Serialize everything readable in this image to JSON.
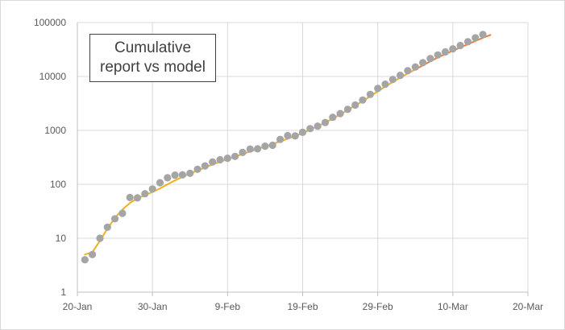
{
  "chart_data": {
    "type": "line",
    "title_lines": [
      "Cumulative",
      "report vs model"
    ],
    "xlabel": "",
    "ylabel": "",
    "x_axis": {
      "type": "date",
      "range": [
        "20-Jan",
        "20-Mar"
      ],
      "tick_labels": [
        "20-Jan",
        "30-Jan",
        "9-Feb",
        "19-Feb",
        "29-Feb",
        "10-Mar",
        "20-Mar"
      ]
    },
    "y_axis": {
      "scale": "log",
      "range": [
        1,
        100000
      ],
      "tick_labels": [
        "1",
        "10",
        "100",
        "1000",
        "10000",
        "100000"
      ]
    },
    "grid": "vertical and horizontal major gridlines",
    "legend": "none",
    "series": [
      {
        "kind": "markers",
        "color": "#a5a5a5",
        "points": [
          [
            "21-Jan",
            4
          ],
          [
            "22-Jan",
            5
          ],
          [
            "23-Jan",
            10
          ],
          [
            "24-Jan",
            16
          ],
          [
            "25-Jan",
            23
          ],
          [
            "26-Jan",
            29
          ],
          [
            "27-Jan",
            57
          ],
          [
            "28-Jan",
            56
          ],
          [
            "29-Jan",
            67
          ],
          [
            "30-Jan",
            82
          ],
          [
            "31-Jan",
            107
          ],
          [
            "1-Feb",
            132
          ],
          [
            "2-Feb",
            148
          ],
          [
            "3-Feb",
            150
          ],
          [
            "4-Feb",
            160
          ],
          [
            "5-Feb",
            190
          ],
          [
            "6-Feb",
            220
          ],
          [
            "7-Feb",
            260
          ],
          [
            "8-Feb",
            285
          ],
          [
            "9-Feb",
            305
          ],
          [
            "10-Feb",
            330
          ],
          [
            "11-Feb",
            390
          ],
          [
            "12-Feb",
            450
          ],
          [
            "13-Feb",
            455
          ],
          [
            "14-Feb",
            510
          ],
          [
            "15-Feb",
            530
          ],
          [
            "16-Feb",
            680
          ],
          [
            "17-Feb",
            800
          ],
          [
            "18-Feb",
            790
          ],
          [
            "19-Feb",
            920
          ],
          [
            "20-Feb",
            1080
          ],
          [
            "21-Feb",
            1200
          ],
          [
            "22-Feb",
            1400
          ],
          [
            "23-Feb",
            1750
          ],
          [
            "24-Feb",
            2050
          ],
          [
            "25-Feb",
            2450
          ],
          [
            "26-Feb",
            2950
          ],
          [
            "27-Feb",
            3650
          ],
          [
            "28-Feb",
            4650
          ],
          [
            "29-Feb",
            6000
          ],
          [
            "1-Mar",
            7200
          ],
          [
            "2-Mar",
            8800
          ],
          [
            "3-Mar",
            10500
          ],
          [
            "4-Mar",
            12800
          ],
          [
            "5-Mar",
            15000
          ],
          [
            "6-Mar",
            18000
          ],
          [
            "7-Mar",
            21500
          ],
          [
            "8-Mar",
            25000
          ],
          [
            "9-Mar",
            28500
          ],
          [
            "10-Mar",
            32500
          ],
          [
            "11-Mar",
            37500
          ],
          [
            "12-Mar",
            44000
          ],
          [
            "13-Mar",
            52000
          ],
          [
            "14-Mar",
            60000
          ]
        ]
      },
      {
        "kind": "line",
        "color": "#f2b01e",
        "points": [
          [
            "21-Jan",
            5
          ],
          [
            "22-Jan",
            5.5
          ],
          [
            "23-Jan",
            9
          ],
          [
            "24-Jan",
            15
          ],
          [
            "25-Jan",
            24
          ],
          [
            "26-Jan",
            34
          ],
          [
            "27-Jan",
            45
          ],
          [
            "28-Jan",
            55
          ],
          [
            "29-Jan",
            63
          ],
          [
            "30-Jan",
            72
          ],
          [
            "31-Jan",
            84
          ],
          [
            "1-Feb",
            100
          ],
          [
            "2-Feb",
            118
          ],
          [
            "3-Feb",
            138
          ],
          [
            "4-Feb",
            158
          ],
          [
            "5-Feb",
            180
          ],
          [
            "6-Feb",
            205
          ],
          [
            "7-Feb",
            232
          ],
          [
            "8-Feb",
            262
          ],
          [
            "9-Feb",
            292
          ],
          [
            "10-Feb",
            325
          ],
          [
            "11-Feb",
            365
          ],
          [
            "12-Feb",
            405
          ],
          [
            "13-Feb",
            452
          ],
          [
            "14-Feb",
            505
          ],
          [
            "15-Feb",
            560
          ],
          [
            "16-Feb",
            625
          ],
          [
            "17-Feb",
            700
          ],
          [
            "18-Feb",
            790
          ],
          [
            "19-Feb",
            890
          ],
          [
            "20-Feb",
            1030
          ],
          [
            "21-Feb",
            1190
          ],
          [
            "22-Feb",
            1400
          ],
          [
            "23-Feb",
            1650
          ],
          [
            "24-Feb",
            1980
          ],
          [
            "25-Feb",
            2380
          ],
          [
            "26-Feb",
            2880
          ],
          [
            "27-Feb",
            3500
          ],
          [
            "28-Feb",
            4300
          ],
          [
            "29-Feb",
            5300
          ],
          [
            "1-Mar",
            6500
          ],
          [
            "2-Mar",
            7900
          ],
          [
            "3-Mar",
            9500
          ],
          [
            "4-Mar",
            11400
          ],
          [
            "5-Mar",
            13500
          ]
        ]
      },
      {
        "kind": "line",
        "color": "#ed7d31",
        "points": [
          [
            "5-Mar",
            13500
          ],
          [
            "6-Mar",
            16000
          ],
          [
            "7-Mar",
            19000
          ],
          [
            "8-Mar",
            22500
          ],
          [
            "9-Mar",
            26000
          ],
          [
            "10-Mar",
            30000
          ],
          [
            "11-Mar",
            34500
          ],
          [
            "12-Mar",
            39500
          ],
          [
            "13-Mar",
            45500
          ],
          [
            "14-Mar",
            52000
          ],
          [
            "15-Mar",
            59000
          ]
        ]
      }
    ]
  }
}
